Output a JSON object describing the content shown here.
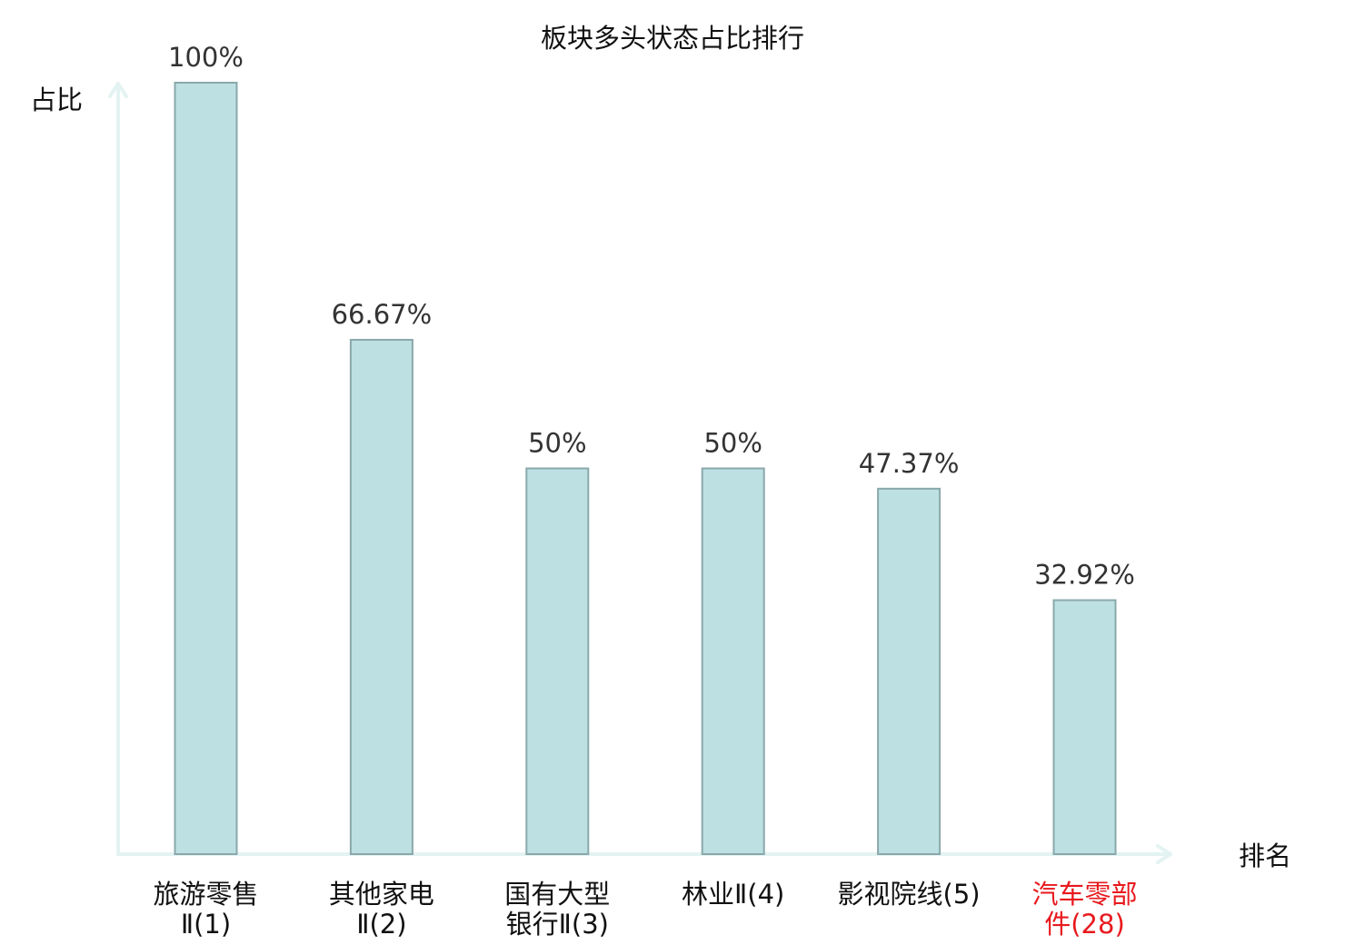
{
  "chart_data": {
    "type": "bar",
    "title": "板块多头状态占比排行",
    "ylabel": "占比",
    "xlabel": "排名",
    "categories": [
      [
        "旅游零售",
        "Ⅱ(1)"
      ],
      [
        "其他家电",
        "Ⅱ(2)"
      ],
      [
        "国有大型",
        "银行Ⅱ(3)"
      ],
      [
        "林业Ⅱ(4)"
      ],
      [
        "影视院线(5)"
      ],
      [
        "汽车零部",
        "件(28)"
      ]
    ],
    "values": [
      100,
      66.67,
      50,
      50,
      47.37,
      32.92
    ],
    "value_labels": [
      "100%",
      "66.67%",
      "50%",
      "50%",
      "47.37%",
      "32.92%"
    ],
    "ylim": [
      0,
      100
    ],
    "grid": false,
    "highlight_index": 5,
    "colors": {
      "bar_fill": "#bde0e3",
      "bar_stroke": "#8aa8ab",
      "axis": "#e3f3f2",
      "label": "#111111",
      "highlight": "#e8191e"
    }
  }
}
